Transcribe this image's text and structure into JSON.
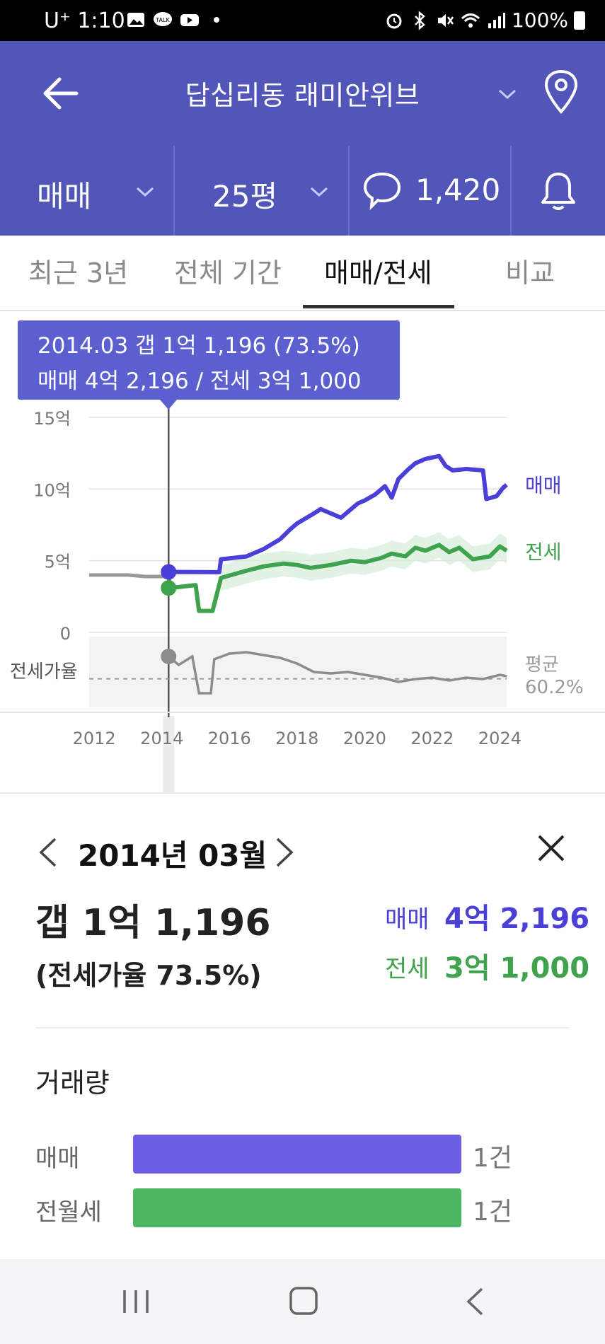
{
  "status_bar": {
    "time": "1:10",
    "carrier": "U⁺",
    "battery": "100%"
  },
  "header": {
    "title": "답십리동 래미안위브"
  },
  "filters": {
    "deal_type": "매매",
    "size": "25평",
    "comments": "1,420"
  },
  "tabs": [
    {
      "label": "최근 3년"
    },
    {
      "label": "전체 기간"
    },
    {
      "label": "매매/전세"
    },
    {
      "label": "비교"
    }
  ],
  "tooltip": {
    "line1": "2014.03  갭 1억 1,196 (73.5%)",
    "line2": "매매 4억 2,196 / 전세 3억 1,000"
  },
  "colors": {
    "header": "#5256b9",
    "sale": "#4a3fd6",
    "jeonse": "#3fa34d",
    "ratio": "#8c8c8c",
    "tooltip": "#5b5fd0",
    "bar_sale": "#6d5fe3",
    "bar_jeonse": "#4cb762"
  },
  "chart_data": {
    "type": "line",
    "x_ticks": [
      "2012",
      "2014",
      "2016",
      "2018",
      "2020",
      "2022",
      "2024"
    ],
    "y_ticks": [
      "15억",
      "10억",
      "5억",
      "0"
    ],
    "xlim": [
      2011.85,
      2024.2
    ],
    "ylim": [
      0,
      15
    ],
    "series": [
      {
        "name": "매매",
        "unit": "억",
        "points": [
          [
            2011.85,
            4.0
          ],
          [
            2013.0,
            4.0
          ],
          [
            2013.5,
            3.9
          ],
          [
            2014.2,
            3.9
          ],
          [
            2014.25,
            4.22
          ],
          [
            2015.7,
            4.2
          ],
          [
            2015.75,
            5.1
          ],
          [
            2016.5,
            5.3
          ],
          [
            2017.0,
            5.8
          ],
          [
            2017.5,
            6.5
          ],
          [
            2017.8,
            7.2
          ],
          [
            2018.0,
            7.6
          ],
          [
            2018.5,
            8.3
          ],
          [
            2018.7,
            8.6
          ],
          [
            2019.3,
            8.0
          ],
          [
            2019.8,
            9.0
          ],
          [
            2020.0,
            9.2
          ],
          [
            2020.3,
            9.6
          ],
          [
            2020.6,
            10.2
          ],
          [
            2020.8,
            9.4
          ],
          [
            2021.0,
            10.7
          ],
          [
            2021.3,
            11.4
          ],
          [
            2021.5,
            11.8
          ],
          [
            2021.8,
            12.1
          ],
          [
            2022.2,
            12.3
          ],
          [
            2022.4,
            11.6
          ],
          [
            2022.6,
            11.3
          ],
          [
            2023.0,
            11.4
          ],
          [
            2023.5,
            11.3
          ],
          [
            2023.6,
            9.3
          ],
          [
            2023.9,
            9.5
          ],
          [
            2024.1,
            10.1
          ],
          [
            2024.2,
            10.3
          ]
        ]
      },
      {
        "name": "전세",
        "unit": "억",
        "points": [
          [
            2011.85,
            4.0
          ],
          [
            2013.0,
            4.0
          ],
          [
            2013.5,
            3.9
          ],
          [
            2014.2,
            3.9
          ],
          [
            2014.25,
            3.1
          ],
          [
            2015.0,
            3.3
          ],
          [
            2015.1,
            1.5
          ],
          [
            2015.5,
            1.5
          ],
          [
            2015.75,
            3.8
          ],
          [
            2016.5,
            4.3
          ],
          [
            2017.0,
            4.6
          ],
          [
            2017.6,
            4.8
          ],
          [
            2018.0,
            4.7
          ],
          [
            2018.4,
            4.5
          ],
          [
            2019.0,
            4.7
          ],
          [
            2019.6,
            5.0
          ],
          [
            2020.0,
            4.9
          ],
          [
            2020.5,
            5.2
          ],
          [
            2020.8,
            5.5
          ],
          [
            2021.2,
            5.3
          ],
          [
            2021.5,
            5.9
          ],
          [
            2021.8,
            5.7
          ],
          [
            2022.2,
            6.1
          ],
          [
            2022.5,
            5.6
          ],
          [
            2022.8,
            5.9
          ],
          [
            2023.2,
            5.1
          ],
          [
            2023.7,
            5.3
          ],
          [
            2024.0,
            6.0
          ],
          [
            2024.2,
            5.7
          ]
        ]
      },
      {
        "name": "전세가율",
        "unit": "%",
        "points": [
          [
            2014.2,
            76
          ],
          [
            2014.5,
            70
          ],
          [
            2014.9,
            76
          ],
          [
            2015.1,
            50
          ],
          [
            2015.45,
            50
          ],
          [
            2015.55,
            74
          ],
          [
            2016.0,
            78
          ],
          [
            2016.5,
            79
          ],
          [
            2017.0,
            77
          ],
          [
            2017.5,
            75
          ],
          [
            2018.0,
            71
          ],
          [
            2018.5,
            65
          ],
          [
            2019.0,
            64
          ],
          [
            2019.5,
            65
          ],
          [
            2020.0,
            63
          ],
          [
            2020.5,
            61
          ],
          [
            2021.0,
            58
          ],
          [
            2021.5,
            60
          ],
          [
            2022.0,
            61
          ],
          [
            2022.5,
            59
          ],
          [
            2023.0,
            61
          ],
          [
            2023.5,
            60
          ],
          [
            2024.0,
            63
          ],
          [
            2024.2,
            62
          ]
        ]
      }
    ],
    "ratio_label": "전세가율",
    "avg_label": "평균",
    "avg_value": "60.2%",
    "selected": {
      "x": 2014.2,
      "sale": 4.2196,
      "jeonse": 3.1,
      "ratio": 73.5
    }
  },
  "detail": {
    "month": "2014년 03월",
    "gap": "갭 1억 1,196",
    "ratio": "(전세가율 73.5%)",
    "sale_label": "매매",
    "sale_value": "4억 2,196",
    "jeonse_label": "전세",
    "jeonse_value": "3억 1,000"
  },
  "volume": {
    "title": "거래량",
    "rows": [
      {
        "label": "매매",
        "count": "1건",
        "fraction": 1.0
      },
      {
        "label": "전월세",
        "count": "1건",
        "fraction": 1.0
      }
    ]
  }
}
